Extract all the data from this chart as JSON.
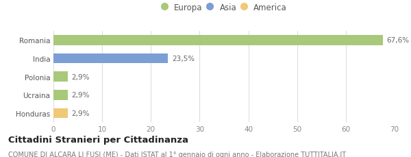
{
  "categories": [
    "Honduras",
    "Ucraina",
    "Polonia",
    "India",
    "Romania"
  ],
  "values": [
    2.9,
    2.9,
    2.9,
    23.5,
    67.6
  ],
  "bar_colors": [
    "#f0c878",
    "#a8c87a",
    "#a8c87a",
    "#7b9fd4",
    "#a8c87a"
  ],
  "labels": [
    "2,9%",
    "2,9%",
    "2,9%",
    "23,5%",
    "67,6%"
  ],
  "xlim": [
    0,
    70
  ],
  "xticks": [
    0,
    10,
    20,
    30,
    40,
    50,
    60,
    70
  ],
  "legend_entries": [
    {
      "label": "Europa",
      "color": "#a8c87a"
    },
    {
      "label": "Asia",
      "color": "#7b9fd4"
    },
    {
      "label": "America",
      "color": "#f0c878"
    }
  ],
  "title_bold": "Cittadini Stranieri per Cittadinanza",
  "subtitle": "COMUNE DI ALCARA LI FUSI (ME) - Dati ISTAT al 1° gennaio di ogni anno - Elaborazione TUTTITALIA.IT",
  "background_color": "#ffffff",
  "bar_height": 0.55,
  "grid_color": "#dddddd",
  "label_fontsize": 7.5,
  "tick_fontsize": 7.5,
  "legend_fontsize": 8.5,
  "title_fontsize": 9.5,
  "subtitle_fontsize": 7.0
}
